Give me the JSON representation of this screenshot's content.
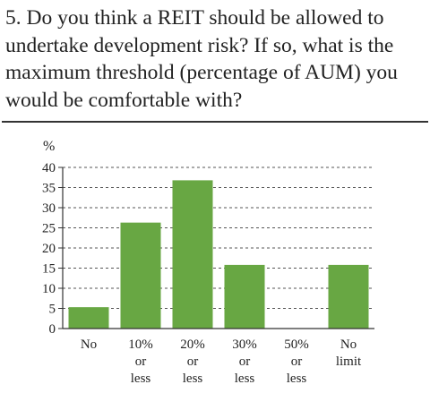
{
  "header": {
    "title": "5. Do you think a REIT should be allowed to undertake development risk? If so, what is the maximum threshold (percentage of AUM) you would be comfortable with?"
  },
  "chart_data": {
    "type": "bar",
    "title": "",
    "xlabel": "",
    "ylabel": "%",
    "ylim": [
      0,
      40
    ],
    "yticks": [
      0,
      5,
      10,
      15,
      20,
      25,
      30,
      35,
      40
    ],
    "grid": true,
    "categories": [
      [
        "No"
      ],
      [
        "10%",
        "or",
        "less"
      ],
      [
        "20%",
        "or",
        "less"
      ],
      [
        "30%",
        "or",
        "less"
      ],
      [
        "50%",
        "or",
        "less"
      ],
      [
        "No",
        "limit"
      ]
    ],
    "values": [
      5.3,
      26.3,
      36.8,
      15.8,
      0,
      15.8
    ],
    "bar_color": "#68a743",
    "grid_color": "#555555",
    "axis_color": "#333333",
    "text_color": "#222222"
  }
}
